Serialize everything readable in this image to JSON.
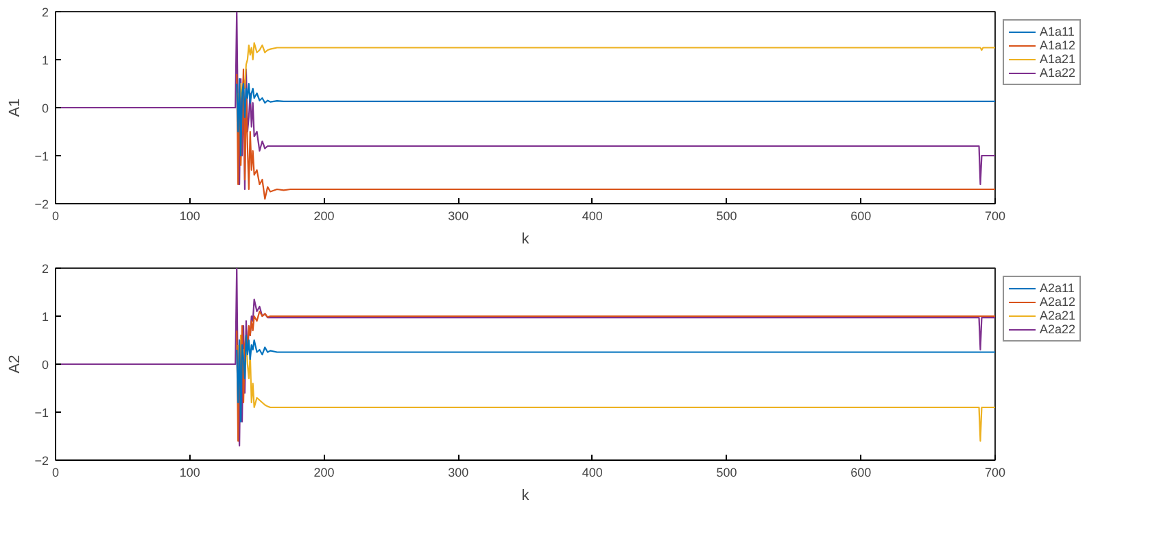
{
  "chart_data": [
    {
      "type": "line",
      "xlabel": "k",
      "ylabel": "A1",
      "xlim": [
        0,
        700
      ],
      "ylim": [
        -2,
        2
      ],
      "xticks": [
        0,
        100,
        200,
        300,
        400,
        500,
        600,
        700
      ],
      "yticks": [
        -2,
        -1,
        0,
        1,
        2
      ],
      "grid": false,
      "legend": "right",
      "x": [
        0,
        134,
        135,
        136,
        137,
        138,
        139,
        140,
        141,
        142,
        143,
        144,
        145,
        146,
        147,
        148,
        150,
        152,
        154,
        156,
        158,
        160,
        165,
        170,
        175,
        180,
        200,
        688,
        689,
        690,
        691,
        692,
        700
      ],
      "series": [
        {
          "name": "A1a11",
          "color": "#0072bd",
          "x": [
            135,
            136,
            137,
            138,
            139,
            140,
            141,
            142,
            143,
            144,
            145,
            146,
            147,
            148,
            150,
            152,
            154,
            156,
            158,
            160,
            165,
            170,
            175,
            180,
            200,
            688,
            689,
            690,
            691,
            692,
            700
          ],
          "values": [
            0.5,
            -0.5,
            0.6,
            -1.0,
            0.3,
            0.5,
            -0.2,
            0.4,
            0.2,
            0.5,
            0.1,
            0.3,
            0.4,
            0.2,
            0.3,
            0.15,
            0.2,
            0.1,
            0.15,
            0.12,
            0.14,
            0.13,
            0.13,
            0.13,
            0.13,
            0.13,
            0.13,
            0.13,
            0.13,
            0.13,
            0.13
          ]
        },
        {
          "name": "A1a12",
          "color": "#d95319",
          "x": [
            135,
            136,
            137,
            138,
            139,
            140,
            141,
            142,
            143,
            144,
            145,
            146,
            147,
            148,
            150,
            152,
            154,
            156,
            158,
            160,
            165,
            170,
            175,
            180,
            200,
            688,
            689,
            690,
            691,
            692,
            700
          ],
          "values": [
            0.7,
            -1.6,
            0.5,
            -1.2,
            -0.3,
            0.8,
            -1.5,
            0.2,
            -0.8,
            -1.7,
            -0.5,
            -1.3,
            -0.9,
            -1.4,
            -1.3,
            -1.6,
            -1.5,
            -1.9,
            -1.65,
            -1.75,
            -1.7,
            -1.72,
            -1.7,
            -1.7,
            -1.7,
            -1.7,
            -1.7,
            -1.7,
            -1.7,
            -1.7,
            -1.7
          ]
        },
        {
          "name": "A1a21",
          "color": "#edb120",
          "x": [
            136,
            137,
            138,
            139,
            140,
            141,
            142,
            143,
            144,
            145,
            146,
            147,
            148,
            150,
            152,
            154,
            156,
            158,
            160,
            165,
            170,
            175,
            180,
            200,
            688,
            689,
            690,
            691,
            692,
            700
          ],
          "values": [
            0.3,
            -0.3,
            0.5,
            0.2,
            0.6,
            0.4,
            0.9,
            1.0,
            1.3,
            1.1,
            1.25,
            1.0,
            1.35,
            1.15,
            1.2,
            1.3,
            1.15,
            1.2,
            1.22,
            1.25,
            1.25,
            1.25,
            1.25,
            1.25,
            1.25,
            1.25,
            1.2,
            1.25,
            1.25,
            1.25
          ]
        },
        {
          "name": "A1a22",
          "color": "#7e2f8e",
          "values": [
            0,
            0,
            2.0,
            -0.5,
            -1.6,
            0.6,
            -1.0,
            0.4,
            -1.7,
            0.8,
            -0.5,
            -0.2,
            0.3,
            -0.4,
            0.1,
            -0.6,
            -0.5,
            -0.9,
            -0.7,
            -0.85,
            -0.8,
            -0.8,
            -0.8,
            -0.8,
            -0.8,
            -0.8,
            -0.8,
            -0.8,
            -1.6,
            -1.0,
            -1.0,
            -1.0,
            -1.0
          ]
        }
      ]
    },
    {
      "type": "line",
      "xlabel": "k",
      "ylabel": "A2",
      "xlim": [
        0,
        700
      ],
      "ylim": [
        -2,
        2
      ],
      "xticks": [
        0,
        100,
        200,
        300,
        400,
        500,
        600,
        700
      ],
      "yticks": [
        -2,
        -1,
        0,
        1,
        2
      ],
      "grid": false,
      "legend": "right",
      "x": [
        0,
        134,
        135,
        136,
        137,
        138,
        139,
        140,
        141,
        142,
        143,
        144,
        145,
        146,
        147,
        148,
        150,
        152,
        154,
        156,
        158,
        160,
        165,
        170,
        175,
        180,
        200,
        688,
        689,
        690,
        691,
        692,
        700
      ],
      "series": [
        {
          "name": "A2a11",
          "color": "#0072bd",
          "x": [
            135,
            136,
            137,
            138,
            139,
            140,
            141,
            142,
            143,
            144,
            145,
            146,
            147,
            148,
            150,
            152,
            154,
            156,
            158,
            160,
            165,
            170,
            175,
            180,
            200,
            688,
            689,
            690,
            691,
            692,
            700
          ],
          "values": [
            0.3,
            -0.8,
            0.5,
            -1.2,
            0.4,
            0.1,
            -0.3,
            0.6,
            0.2,
            0.5,
            0.1,
            0.4,
            0.3,
            0.5,
            0.25,
            0.3,
            0.2,
            0.35,
            0.25,
            0.28,
            0.25,
            0.25,
            0.25,
            0.25,
            0.25,
            0.25,
            0.25,
            0.25,
            0.25,
            0.25,
            0.25
          ]
        },
        {
          "name": "A2a12",
          "color": "#d95319",
          "x": [
            135,
            136,
            137,
            138,
            139,
            140,
            141,
            142,
            143,
            144,
            145,
            146,
            147,
            148,
            150,
            152,
            154,
            156,
            158,
            160,
            165,
            170,
            175,
            180,
            200,
            688,
            689,
            690,
            691,
            692,
            700
          ],
          "values": [
            0.7,
            -1.6,
            0.5,
            -1.0,
            0.8,
            -0.8,
            0.4,
            0.6,
            0.3,
            0.8,
            0.6,
            0.9,
            0.7,
            1.0,
            0.9,
            1.1,
            1.0,
            1.05,
            0.98,
            1.0,
            1.0,
            1.0,
            1.0,
            1.0,
            1.0,
            1.0,
            1.0,
            1.0,
            1.0,
            1.0,
            1.0
          ]
        },
        {
          "name": "A2a21",
          "color": "#edb120",
          "x": [
            136,
            137,
            138,
            139,
            140,
            141,
            142,
            143,
            144,
            145,
            146,
            147,
            148,
            150,
            152,
            154,
            156,
            158,
            160,
            165,
            170,
            175,
            180,
            200,
            688,
            689,
            690,
            691,
            692,
            700
          ],
          "values": [
            0.4,
            -0.5,
            0.6,
            0.1,
            0.3,
            -0.2,
            0.5,
            0,
            -0.3,
            0.2,
            -0.8,
            -0.4,
            -0.9,
            -0.7,
            -0.75,
            -0.8,
            -0.85,
            -0.88,
            -0.9,
            -0.9,
            -0.9,
            -0.9,
            -0.9,
            -0.9,
            -0.9,
            -1.6,
            -0.9,
            -0.9,
            -0.9,
            -0.9
          ]
        },
        {
          "name": "A2a22",
          "color": "#7e2f8e",
          "values": [
            0,
            0,
            2.0,
            -0.8,
            -1.7,
            0.6,
            -1.2,
            0.8,
            -0.6,
            0.9,
            0.2,
            0.7,
            0.6,
            1.0,
            0.9,
            1.35,
            1.1,
            1.2,
            1.0,
            1.05,
            0.97,
            0.97,
            0.97,
            0.97,
            0.97,
            0.97,
            0.97,
            0.97,
            0.3,
            0.97,
            0.97,
            0.97,
            0.97
          ]
        }
      ]
    }
  ]
}
